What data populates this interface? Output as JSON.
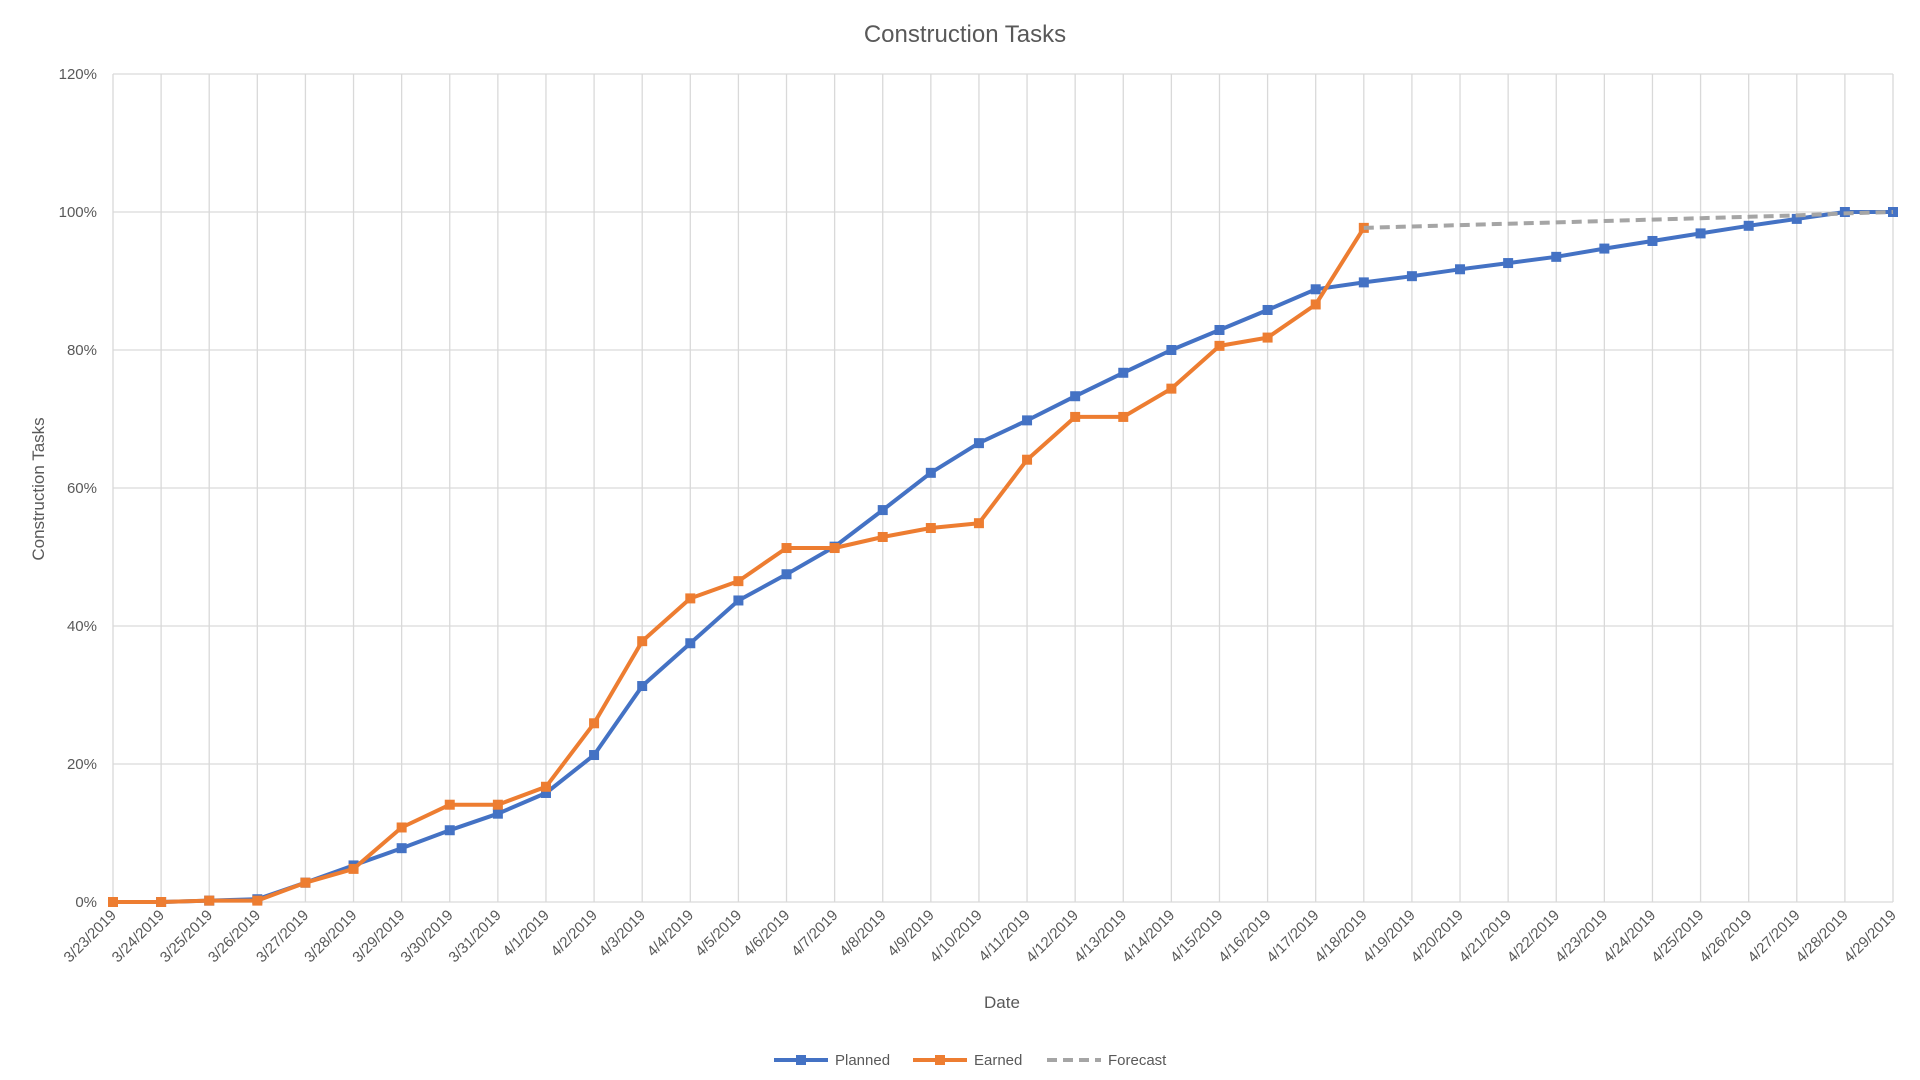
{
  "chart_data": {
    "type": "line",
    "title": "Construction Tasks",
    "xlabel": "Date",
    "ylabel": "Construction Tasks",
    "ylim": [
      0,
      1.2
    ],
    "yticks": [
      "0%",
      "20%",
      "40%",
      "60%",
      "80%",
      "100%",
      "120%"
    ],
    "grid": true,
    "legend_position": "bottom",
    "categories": [
      "3/23/2019",
      "3/24/2019",
      "3/25/2019",
      "3/26/2019",
      "3/27/2019",
      "3/28/2019",
      "3/29/2019",
      "3/30/2019",
      "3/31/2019",
      "4/1/2019",
      "4/2/2019",
      "4/3/2019",
      "4/4/2019",
      "4/5/2019",
      "4/6/2019",
      "4/7/2019",
      "4/8/2019",
      "4/9/2019",
      "4/10/2019",
      "4/11/2019",
      "4/12/2019",
      "4/13/2019",
      "4/14/2019",
      "4/15/2019",
      "4/16/2019",
      "4/17/2019",
      "4/18/2019",
      "4/19/2019",
      "4/20/2019",
      "4/21/2019",
      "4/22/2019",
      "4/23/2019",
      "4/24/2019",
      "4/25/2019",
      "4/26/2019",
      "4/27/2019",
      "4/28/2019",
      "4/29/2019"
    ],
    "series": [
      {
        "name": "Planned",
        "color": "#4472c4",
        "marker": "square",
        "dash": "solid",
        "values": [
          0.0,
          0.0,
          0.002,
          0.004,
          0.028,
          0.053,
          0.078,
          0.104,
          0.128,
          0.158,
          0.213,
          0.313,
          0.375,
          0.437,
          0.475,
          0.515,
          0.568,
          0.622,
          0.665,
          0.698,
          0.733,
          0.767,
          0.8,
          0.829,
          0.858,
          0.888,
          0.898,
          0.907,
          0.917,
          0.926,
          0.935,
          0.947,
          0.958,
          0.969,
          0.98,
          0.99,
          1.0,
          1.0
        ]
      },
      {
        "name": "Earned",
        "color": "#ed7d31",
        "marker": "square",
        "dash": "solid",
        "values": [
          0.0,
          0.0,
          0.002,
          0.002,
          0.028,
          0.048,
          0.108,
          0.141,
          0.141,
          0.167,
          0.259,
          0.378,
          0.44,
          0.465,
          0.513,
          0.513,
          0.529,
          0.542,
          0.549,
          0.641,
          0.703,
          0.703,
          0.744,
          0.806,
          0.818,
          0.866,
          0.977,
          null,
          null,
          null,
          null,
          null,
          null,
          null,
          null,
          null,
          null,
          null
        ]
      },
      {
        "name": "Forecast",
        "color": "#a5a5a5",
        "marker": "none",
        "dash": "dashed",
        "values": [
          null,
          null,
          null,
          null,
          null,
          null,
          null,
          null,
          null,
          null,
          null,
          null,
          null,
          null,
          null,
          null,
          null,
          null,
          null,
          null,
          null,
          null,
          null,
          null,
          null,
          null,
          0.977,
          0.979,
          0.981,
          0.983,
          0.985,
          0.987,
          0.989,
          0.991,
          0.993,
          0.995,
          0.998,
          1.0
        ]
      }
    ]
  }
}
